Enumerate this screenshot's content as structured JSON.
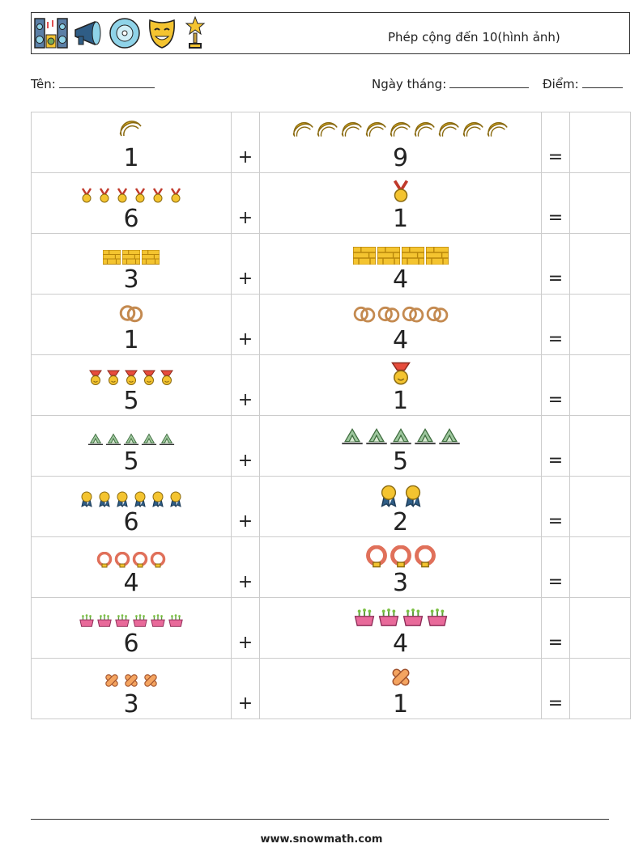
{
  "header": {
    "title": "Phép cộng đến 10(hình ảnh)",
    "icons": [
      "speakers-icon",
      "megaphone-icon",
      "cd-icon",
      "theater-mask-icon",
      "trophy-icon"
    ]
  },
  "info": {
    "name_label": "Tên:",
    "date_label": "Ngày tháng:",
    "score_label": "Điểm:"
  },
  "symbols": {
    "plus": "+",
    "equals": "="
  },
  "problems": [
    {
      "a": 1,
      "b": 9,
      "icon_a": "protractor-icon",
      "icon_b": "protractor-icon"
    },
    {
      "a": 6,
      "b": 1,
      "icon_a": "medal-icon",
      "icon_b": "medal-icon"
    },
    {
      "a": 3,
      "b": 4,
      "icon_a": "brick-wall-icon",
      "icon_b": "brick-wall-icon"
    },
    {
      "a": 1,
      "b": 4,
      "icon_a": "rings-icon",
      "icon_b": "rings-icon"
    },
    {
      "a": 5,
      "b": 1,
      "icon_a": "smiley-medal-icon",
      "icon_b": "smiley-medal-icon"
    },
    {
      "a": 5,
      "b": 5,
      "icon_a": "tent-camp-icon",
      "icon_b": "tent-camp-icon"
    },
    {
      "a": 6,
      "b": 2,
      "icon_a": "award-ribbon-icon",
      "icon_b": "award-ribbon-icon"
    },
    {
      "a": 4,
      "b": 3,
      "icon_a": "ring-buoy-icon",
      "icon_b": "ring-buoy-icon"
    },
    {
      "a": 6,
      "b": 4,
      "icon_a": "plant-pot-icon",
      "icon_b": "plant-pot-icon"
    },
    {
      "a": 3,
      "b": 1,
      "icon_a": "bandage-icon",
      "icon_b": "bandage-icon"
    }
  ],
  "footer": {
    "text": "www.snowmath.com"
  }
}
